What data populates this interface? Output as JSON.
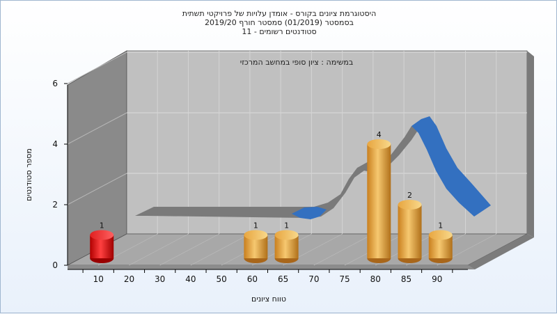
{
  "chart_data": {
    "type": "bar",
    "title_lines": [
      "היסטוגרמת ציונים בקורס - אומדן עלויות של פרויקטי תשתית",
      "בסמסטר  (01/2019)  סמסטר חורף 2019/20",
      "סטודנטים רשומים - 11"
    ],
    "subtitle": "במשימה : ציון סופי במחשב המרכזי",
    "xlabel": "טווח ציונים",
    "ylabel": "מספר סטודנטים",
    "categories": [
      "10",
      "20",
      "30",
      "40",
      "50",
      "60",
      "65",
      "70",
      "75",
      "80",
      "85",
      "90"
    ],
    "values": [
      1,
      0,
      0,
      0,
      0,
      1,
      1,
      0,
      0,
      4,
      2,
      1
    ],
    "bar_colors": [
      "#e01a1a",
      "#e0a040",
      "#e0a040",
      "#e0a040",
      "#e0a040",
      "#e0a040",
      "#e0a040",
      "#e0a040",
      "#e0a040",
      "#e0a040",
      "#e0a040",
      "#e0a040"
    ],
    "ylim": [
      0,
      6
    ],
    "yticks": [
      "0",
      "2",
      "4",
      "6"
    ],
    "back_curve_color_gray": "#777777",
    "back_curve_color_blue": "#3370c0",
    "grid": true
  }
}
